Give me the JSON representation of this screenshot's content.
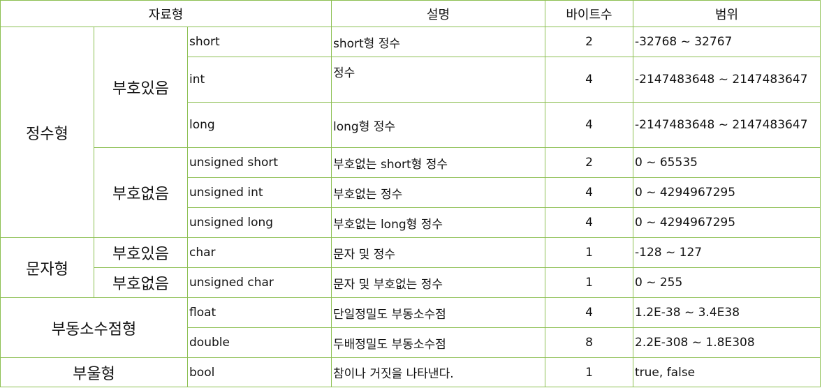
{
  "headers": {
    "type": "자료형",
    "description": "설명",
    "bytes": "바이트수",
    "range": "범위"
  },
  "groups": {
    "integer": "정수형",
    "char": "문자형",
    "float": "부동소수점형",
    "bool": "부울형"
  },
  "subgroups": {
    "signed": "부호있음",
    "unsigned": "부호없음"
  },
  "rows": [
    {
      "type": "short",
      "desc": "short형 정수",
      "bytes": "2",
      "range": "-32768 ~ 32767"
    },
    {
      "type": "int",
      "desc": "정수",
      "bytes": "4",
      "range": "-2147483648 ~ 2147483647"
    },
    {
      "type": "long",
      "desc": "long형 정수",
      "bytes": "4",
      "range": "-2147483648 ~ 2147483647"
    },
    {
      "type": "unsigned short",
      "desc": "부호없는 short형 정수",
      "bytes": "2",
      "range": "0 ~ 65535"
    },
    {
      "type": "unsigned int",
      "desc": "부호없는 정수",
      "bytes": "4",
      "range": "0 ~ 4294967295"
    },
    {
      "type": "unsigned long",
      "desc": "부호없는 long형 정수",
      "bytes": "4",
      "range": "0 ~ 4294967295"
    },
    {
      "type": "char",
      "desc": "문자 및 정수",
      "bytes": "1",
      "range": "-128 ~ 127"
    },
    {
      "type": "unsigned char",
      "desc": "문자 및 부호없는 정수",
      "bytes": "1",
      "range": "0 ~ 255"
    },
    {
      "type": "float",
      "desc": "단일정밀도 부동소수점",
      "bytes": "4",
      "range": "1.2E-38 ~ 3.4E38"
    },
    {
      "type": "double",
      "desc": "두배정밀도 부동소수점",
      "bytes": "8",
      "range": "2.2E-308 ~ 1.8E308"
    },
    {
      "type": "bool",
      "desc": "참이나 거짓을 나타낸다.",
      "bytes": "1",
      "range": "true, false"
    }
  ]
}
